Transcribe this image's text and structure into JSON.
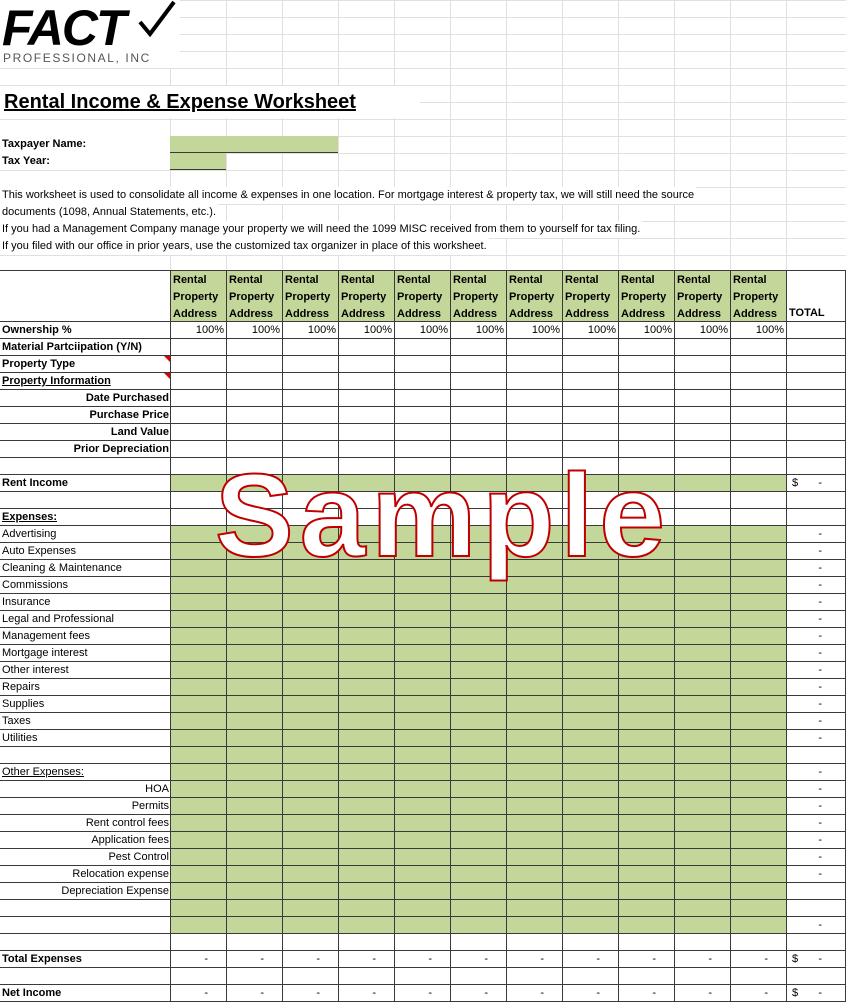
{
  "logo": {
    "name": "FACT",
    "tagline": "PROFESSIONAL, INC"
  },
  "title": "Rental Income & Expense Worksheet",
  "fields": [
    {
      "label": "Taxpayer Name:"
    },
    {
      "label": "Tax Year:"
    }
  ],
  "notes": [
    "This worksheet is used to consolidate all income & expenses in one location. For mortgage interest & property tax, we will still need the source",
    "documents (1098, Annual Statements, etc.).",
    "If you had a Management Company manage your property we will need the 1099 MISC received from them to yourself for tax filing.",
    "If you filed with our office in prior years, use the customized tax organizer in place of this worksheet."
  ],
  "table": {
    "columns": [
      [
        "Rental",
        "Property",
        "Address"
      ],
      [
        "Rental",
        "Property",
        "Address"
      ],
      [
        "Rental",
        "Property",
        "Address"
      ],
      [
        "Rental",
        "Property",
        "Address"
      ],
      [
        "Rental",
        "Property",
        "Address"
      ],
      [
        "Rental",
        "Property",
        "Address"
      ],
      [
        "Rental",
        "Property",
        "Address"
      ],
      [
        "Rental",
        "Property",
        "Address"
      ],
      [
        "Rental",
        "Property",
        "Address"
      ],
      [
        "Rental",
        "Property",
        "Address"
      ],
      [
        "Rental",
        "Property",
        "Address"
      ]
    ],
    "total_header": "TOTAL",
    "fill": "#c4d79b",
    "rows": [
      {
        "label": "Ownership %",
        "bold": true,
        "cells": [
          "100%",
          "100%",
          "100%",
          "100%",
          "100%",
          "100%",
          "100%",
          "100%",
          "100%",
          "100%",
          "100%"
        ]
      },
      {
        "label": "Material Partciipation (Y/N)",
        "bold": true
      },
      {
        "label": "Property Type",
        "bold": true,
        "note_marker": true
      },
      {
        "label": "Property Information",
        "bold": true,
        "underline": true,
        "note_marker": true
      },
      {
        "label": "Date Purchased",
        "bold": true,
        "align": "right"
      },
      {
        "label": "Purchase Price",
        "bold": true,
        "align": "right"
      },
      {
        "label": "Land Value",
        "bold": true,
        "align": "right"
      },
      {
        "label": "Prior Depreciation",
        "bold": true,
        "align": "right"
      },
      {},
      {
        "label": "Rent Income",
        "bold": true,
        "filled": true,
        "currency": "$",
        "total": "-"
      },
      {},
      {
        "label": "Expenses:",
        "bold": true,
        "underline": true
      },
      {
        "label": "Advertising",
        "filled": true,
        "total": "-"
      },
      {
        "label": "Auto Expenses",
        "filled": true,
        "total": "-"
      },
      {
        "label": "Cleaning & Maintenance",
        "filled": true,
        "total": "-"
      },
      {
        "label": "Commissions",
        "filled": true,
        "total": "-"
      },
      {
        "label": "Insurance",
        "filled": true,
        "total": "-"
      },
      {
        "label": "Legal and Professional",
        "filled": true,
        "total": "-"
      },
      {
        "label": "Management fees",
        "filled": true,
        "total": "-"
      },
      {
        "label": "Mortgage interest",
        "filled": true,
        "total": "-"
      },
      {
        "label": "Other interest",
        "filled": true,
        "total": "-"
      },
      {
        "label": "Repairs",
        "filled": true,
        "total": "-"
      },
      {
        "label": "Supplies",
        "filled": true,
        "total": "-"
      },
      {
        "label": "Taxes",
        "filled": true,
        "total": "-"
      },
      {
        "label": "Utilities",
        "filled": true,
        "total": "-"
      },
      {
        "filled": true
      },
      {
        "label": "Other Expenses:",
        "underline": true,
        "filled": true,
        "total": "-"
      },
      {
        "label": "HOA",
        "align": "right",
        "filled": true,
        "total": "-"
      },
      {
        "label": "Permits",
        "align": "right",
        "filled": true,
        "total": "-"
      },
      {
        "label": "Rent control fees",
        "align": "right",
        "filled": true,
        "total": "-"
      },
      {
        "label": "Application fees",
        "align": "right",
        "filled": true,
        "total": "-"
      },
      {
        "label": "Pest Control",
        "align": "right",
        "filled": true,
        "total": "-"
      },
      {
        "label": "Relocation expense",
        "align": "right",
        "filled": true,
        "total": "-"
      },
      {
        "label": "Depreciation Expense",
        "align": "right",
        "filled": true
      },
      {
        "filled": true
      },
      {
        "filled": true,
        "total": "-"
      },
      {},
      {
        "label": "Total Expenses",
        "bold": true,
        "cells": [
          "-",
          "-",
          "-",
          "-",
          "-",
          "-",
          "-",
          "-",
          "-",
          "-",
          "-"
        ],
        "currency": "$",
        "total": "-"
      },
      {},
      {
        "label": "Net Income",
        "bold": true,
        "cells": [
          "-",
          "-",
          "-",
          "-",
          "-",
          "-",
          "-",
          "-",
          "-",
          "-",
          "-"
        ],
        "currency": "$",
        "total": "-"
      }
    ]
  },
  "watermark": "Sample"
}
